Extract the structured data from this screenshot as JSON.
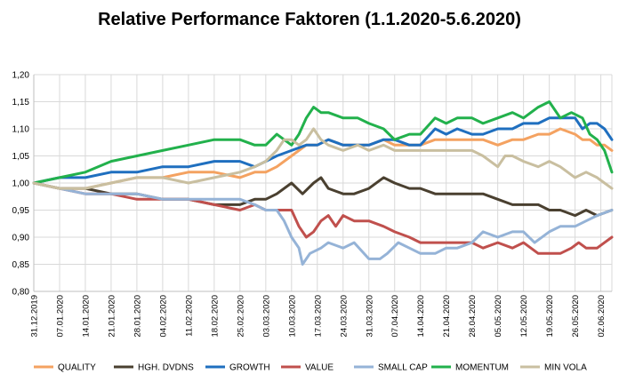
{
  "chart_data": {
    "type": "line",
    "title": "Relative Performance Faktoren (1.1.2020-5.6.2020)",
    "xlabel": "",
    "ylabel": "",
    "ylim": [
      0.8,
      1.2
    ],
    "yticks": [
      "0,80",
      "0,85",
      "0,90",
      "0,95",
      "1,00",
      "1,05",
      "1,10",
      "1,15",
      "1,20"
    ],
    "grid": true,
    "legend_position": "bottom",
    "x_ticklabels": [
      "31.12.2019",
      "07.01.2020",
      "14.01.2020",
      "21.01.2020",
      "28.01.2020",
      "04.02.2020",
      "11.02.2020",
      "18.02.2020",
      "25.02.2020",
      "03.03.2020",
      "10.03.2020",
      "17.03.2020",
      "24.03.2020",
      "31.03.2020",
      "07.04.2020",
      "14.04.2020",
      "21.04.2020",
      "28.04.2020",
      "05.05.2020",
      "12.05.2020",
      "19.05.2020",
      "26.05.2020",
      "02.06.2020"
    ],
    "x_days": 157,
    "series": [
      {
        "name": "QUALITY",
        "color": "#F4A261",
        "points": [
          [
            0,
            1.0
          ],
          [
            7,
            0.99
          ],
          [
            14,
            0.99
          ],
          [
            21,
            1.0
          ],
          [
            28,
            1.01
          ],
          [
            35,
            1.01
          ],
          [
            42,
            1.02
          ],
          [
            49,
            1.02
          ],
          [
            56,
            1.01
          ],
          [
            60,
            1.02
          ],
          [
            63,
            1.02
          ],
          [
            66,
            1.03
          ],
          [
            70,
            1.05
          ],
          [
            74,
            1.07
          ],
          [
            77,
            1.07
          ],
          [
            80,
            1.08
          ],
          [
            84,
            1.07
          ],
          [
            88,
            1.07
          ],
          [
            91,
            1.07
          ],
          [
            95,
            1.08
          ],
          [
            98,
            1.07
          ],
          [
            102,
            1.07
          ],
          [
            105,
            1.07
          ],
          [
            109,
            1.08
          ],
          [
            112,
            1.08
          ],
          [
            115,
            1.08
          ],
          [
            119,
            1.08
          ],
          [
            122,
            1.08
          ],
          [
            126,
            1.07
          ],
          [
            130,
            1.08
          ],
          [
            133,
            1.08
          ],
          [
            137,
            1.09
          ],
          [
            140,
            1.09
          ],
          [
            143,
            1.1
          ],
          [
            147,
            1.09
          ],
          [
            149,
            1.08
          ],
          [
            151,
            1.08
          ],
          [
            153,
            1.07
          ],
          [
            155,
            1.07
          ],
          [
            157,
            1.06
          ]
        ]
      },
      {
        "name": "HGH. DVDNS",
        "color": "#4A4030",
        "points": [
          [
            0,
            1.0
          ],
          [
            7,
            0.99
          ],
          [
            14,
            0.99
          ],
          [
            21,
            0.98
          ],
          [
            28,
            0.98
          ],
          [
            35,
            0.97
          ],
          [
            42,
            0.97
          ],
          [
            49,
            0.96
          ],
          [
            56,
            0.96
          ],
          [
            60,
            0.97
          ],
          [
            63,
            0.97
          ],
          [
            66,
            0.98
          ],
          [
            70,
            1.0
          ],
          [
            73,
            0.98
          ],
          [
            76,
            1.0
          ],
          [
            78,
            1.01
          ],
          [
            80,
            0.99
          ],
          [
            84,
            0.98
          ],
          [
            87,
            0.98
          ],
          [
            91,
            0.99
          ],
          [
            95,
            1.01
          ],
          [
            98,
            1.0
          ],
          [
            102,
            0.99
          ],
          [
            105,
            0.99
          ],
          [
            109,
            0.98
          ],
          [
            112,
            0.98
          ],
          [
            115,
            0.98
          ],
          [
            119,
            0.98
          ],
          [
            122,
            0.98
          ],
          [
            126,
            0.97
          ],
          [
            130,
            0.96
          ],
          [
            133,
            0.96
          ],
          [
            137,
            0.96
          ],
          [
            140,
            0.95
          ],
          [
            143,
            0.95
          ],
          [
            147,
            0.94
          ],
          [
            150,
            0.95
          ],
          [
            153,
            0.94
          ],
          [
            157,
            0.95
          ]
        ]
      },
      {
        "name": "GROWTH",
        "color": "#1F6FBF",
        "points": [
          [
            0,
            1.0
          ],
          [
            7,
            1.01
          ],
          [
            14,
            1.01
          ],
          [
            21,
            1.02
          ],
          [
            28,
            1.02
          ],
          [
            35,
            1.03
          ],
          [
            42,
            1.03
          ],
          [
            49,
            1.04
          ],
          [
            56,
            1.04
          ],
          [
            60,
            1.03
          ],
          [
            63,
            1.04
          ],
          [
            66,
            1.05
          ],
          [
            70,
            1.06
          ],
          [
            74,
            1.07
          ],
          [
            77,
            1.07
          ],
          [
            80,
            1.08
          ],
          [
            84,
            1.07
          ],
          [
            88,
            1.07
          ],
          [
            91,
            1.07
          ],
          [
            95,
            1.08
          ],
          [
            98,
            1.08
          ],
          [
            102,
            1.07
          ],
          [
            105,
            1.07
          ],
          [
            109,
            1.1
          ],
          [
            112,
            1.09
          ],
          [
            115,
            1.1
          ],
          [
            119,
            1.09
          ],
          [
            122,
            1.09
          ],
          [
            126,
            1.1
          ],
          [
            130,
            1.1
          ],
          [
            133,
            1.11
          ],
          [
            137,
            1.11
          ],
          [
            140,
            1.12
          ],
          [
            143,
            1.12
          ],
          [
            147,
            1.12
          ],
          [
            149,
            1.1
          ],
          [
            151,
            1.11
          ],
          [
            153,
            1.11
          ],
          [
            155,
            1.1
          ],
          [
            157,
            1.08
          ]
        ]
      },
      {
        "name": "VALUE",
        "color": "#C0504D",
        "points": [
          [
            0,
            1.0
          ],
          [
            7,
            0.99
          ],
          [
            14,
            0.98
          ],
          [
            21,
            0.98
          ],
          [
            28,
            0.97
          ],
          [
            35,
            0.97
          ],
          [
            42,
            0.97
          ],
          [
            49,
            0.96
          ],
          [
            56,
            0.95
          ],
          [
            60,
            0.96
          ],
          [
            63,
            0.95
          ],
          [
            66,
            0.95
          ],
          [
            70,
            0.95
          ],
          [
            72,
            0.92
          ],
          [
            74,
            0.9
          ],
          [
            76,
            0.91
          ],
          [
            78,
            0.93
          ],
          [
            80,
            0.94
          ],
          [
            82,
            0.92
          ],
          [
            84,
            0.94
          ],
          [
            87,
            0.93
          ],
          [
            91,
            0.93
          ],
          [
            95,
            0.92
          ],
          [
            98,
            0.91
          ],
          [
            102,
            0.9
          ],
          [
            105,
            0.89
          ],
          [
            109,
            0.89
          ],
          [
            112,
            0.89
          ],
          [
            115,
            0.89
          ],
          [
            119,
            0.89
          ],
          [
            122,
            0.88
          ],
          [
            126,
            0.89
          ],
          [
            130,
            0.88
          ],
          [
            133,
            0.89
          ],
          [
            137,
            0.87
          ],
          [
            140,
            0.87
          ],
          [
            143,
            0.87
          ],
          [
            146,
            0.88
          ],
          [
            148,
            0.89
          ],
          [
            150,
            0.88
          ],
          [
            153,
            0.88
          ],
          [
            155,
            0.89
          ],
          [
            157,
            0.9
          ]
        ]
      },
      {
        "name": "SMALL CAP",
        "color": "#95B3D7",
        "points": [
          [
            0,
            1.0
          ],
          [
            7,
            0.99
          ],
          [
            14,
            0.98
          ],
          [
            21,
            0.98
          ],
          [
            28,
            0.98
          ],
          [
            35,
            0.97
          ],
          [
            42,
            0.97
          ],
          [
            49,
            0.97
          ],
          [
            56,
            0.97
          ],
          [
            60,
            0.96
          ],
          [
            63,
            0.95
          ],
          [
            66,
            0.95
          ],
          [
            68,
            0.93
          ],
          [
            70,
            0.9
          ],
          [
            72,
            0.88
          ],
          [
            73,
            0.85
          ],
          [
            75,
            0.87
          ],
          [
            78,
            0.88
          ],
          [
            80,
            0.89
          ],
          [
            84,
            0.88
          ],
          [
            87,
            0.89
          ],
          [
            91,
            0.86
          ],
          [
            94,
            0.86
          ],
          [
            96,
            0.87
          ],
          [
            99,
            0.89
          ],
          [
            102,
            0.88
          ],
          [
            105,
            0.87
          ],
          [
            109,
            0.87
          ],
          [
            112,
            0.88
          ],
          [
            115,
            0.88
          ],
          [
            119,
            0.89
          ],
          [
            122,
            0.91
          ],
          [
            126,
            0.9
          ],
          [
            130,
            0.91
          ],
          [
            133,
            0.91
          ],
          [
            136,
            0.89
          ],
          [
            140,
            0.91
          ],
          [
            143,
            0.92
          ],
          [
            147,
            0.92
          ],
          [
            150,
            0.93
          ],
          [
            153,
            0.94
          ],
          [
            157,
            0.95
          ]
        ]
      },
      {
        "name": "MOMENTUM",
        "color": "#22B14C",
        "points": [
          [
            0,
            1.0
          ],
          [
            7,
            1.01
          ],
          [
            14,
            1.02
          ],
          [
            21,
            1.04
          ],
          [
            28,
            1.05
          ],
          [
            35,
            1.06
          ],
          [
            42,
            1.07
          ],
          [
            49,
            1.08
          ],
          [
            56,
            1.08
          ],
          [
            60,
            1.07
          ],
          [
            63,
            1.07
          ],
          [
            66,
            1.09
          ],
          [
            70,
            1.07
          ],
          [
            72,
            1.09
          ],
          [
            74,
            1.12
          ],
          [
            76,
            1.14
          ],
          [
            78,
            1.13
          ],
          [
            80,
            1.13
          ],
          [
            84,
            1.12
          ],
          [
            88,
            1.12
          ],
          [
            91,
            1.11
          ],
          [
            95,
            1.1
          ],
          [
            98,
            1.08
          ],
          [
            102,
            1.09
          ],
          [
            105,
            1.09
          ],
          [
            109,
            1.12
          ],
          [
            112,
            1.11
          ],
          [
            115,
            1.12
          ],
          [
            119,
            1.12
          ],
          [
            122,
            1.11
          ],
          [
            126,
            1.12
          ],
          [
            130,
            1.13
          ],
          [
            133,
            1.12
          ],
          [
            137,
            1.14
          ],
          [
            140,
            1.15
          ],
          [
            143,
            1.12
          ],
          [
            146,
            1.13
          ],
          [
            149,
            1.12
          ],
          [
            151,
            1.09
          ],
          [
            153,
            1.08
          ],
          [
            155,
            1.06
          ],
          [
            157,
            1.02
          ]
        ]
      },
      {
        "name": "MIN VOLA",
        "color": "#C9BFA0",
        "points": [
          [
            0,
            1.0
          ],
          [
            7,
            0.99
          ],
          [
            14,
            0.99
          ],
          [
            21,
            1.0
          ],
          [
            28,
            1.01
          ],
          [
            35,
            1.01
          ],
          [
            42,
            1.0
          ],
          [
            49,
            1.01
          ],
          [
            56,
            1.02
          ],
          [
            60,
            1.03
          ],
          [
            63,
            1.04
          ],
          [
            66,
            1.06
          ],
          [
            68,
            1.08
          ],
          [
            70,
            1.08
          ],
          [
            72,
            1.07
          ],
          [
            74,
            1.08
          ],
          [
            76,
            1.1
          ],
          [
            78,
            1.08
          ],
          [
            80,
            1.07
          ],
          [
            84,
            1.06
          ],
          [
            88,
            1.07
          ],
          [
            91,
            1.06
          ],
          [
            95,
            1.07
          ],
          [
            98,
            1.06
          ],
          [
            102,
            1.06
          ],
          [
            105,
            1.06
          ],
          [
            109,
            1.06
          ],
          [
            112,
            1.06
          ],
          [
            115,
            1.06
          ],
          [
            119,
            1.06
          ],
          [
            122,
            1.05
          ],
          [
            126,
            1.03
          ],
          [
            128,
            1.05
          ],
          [
            130,
            1.05
          ],
          [
            133,
            1.04
          ],
          [
            137,
            1.03
          ],
          [
            140,
            1.04
          ],
          [
            143,
            1.03
          ],
          [
            147,
            1.01
          ],
          [
            150,
            1.02
          ],
          [
            153,
            1.01
          ],
          [
            155,
            1.0
          ],
          [
            157,
            0.99
          ]
        ]
      }
    ]
  }
}
